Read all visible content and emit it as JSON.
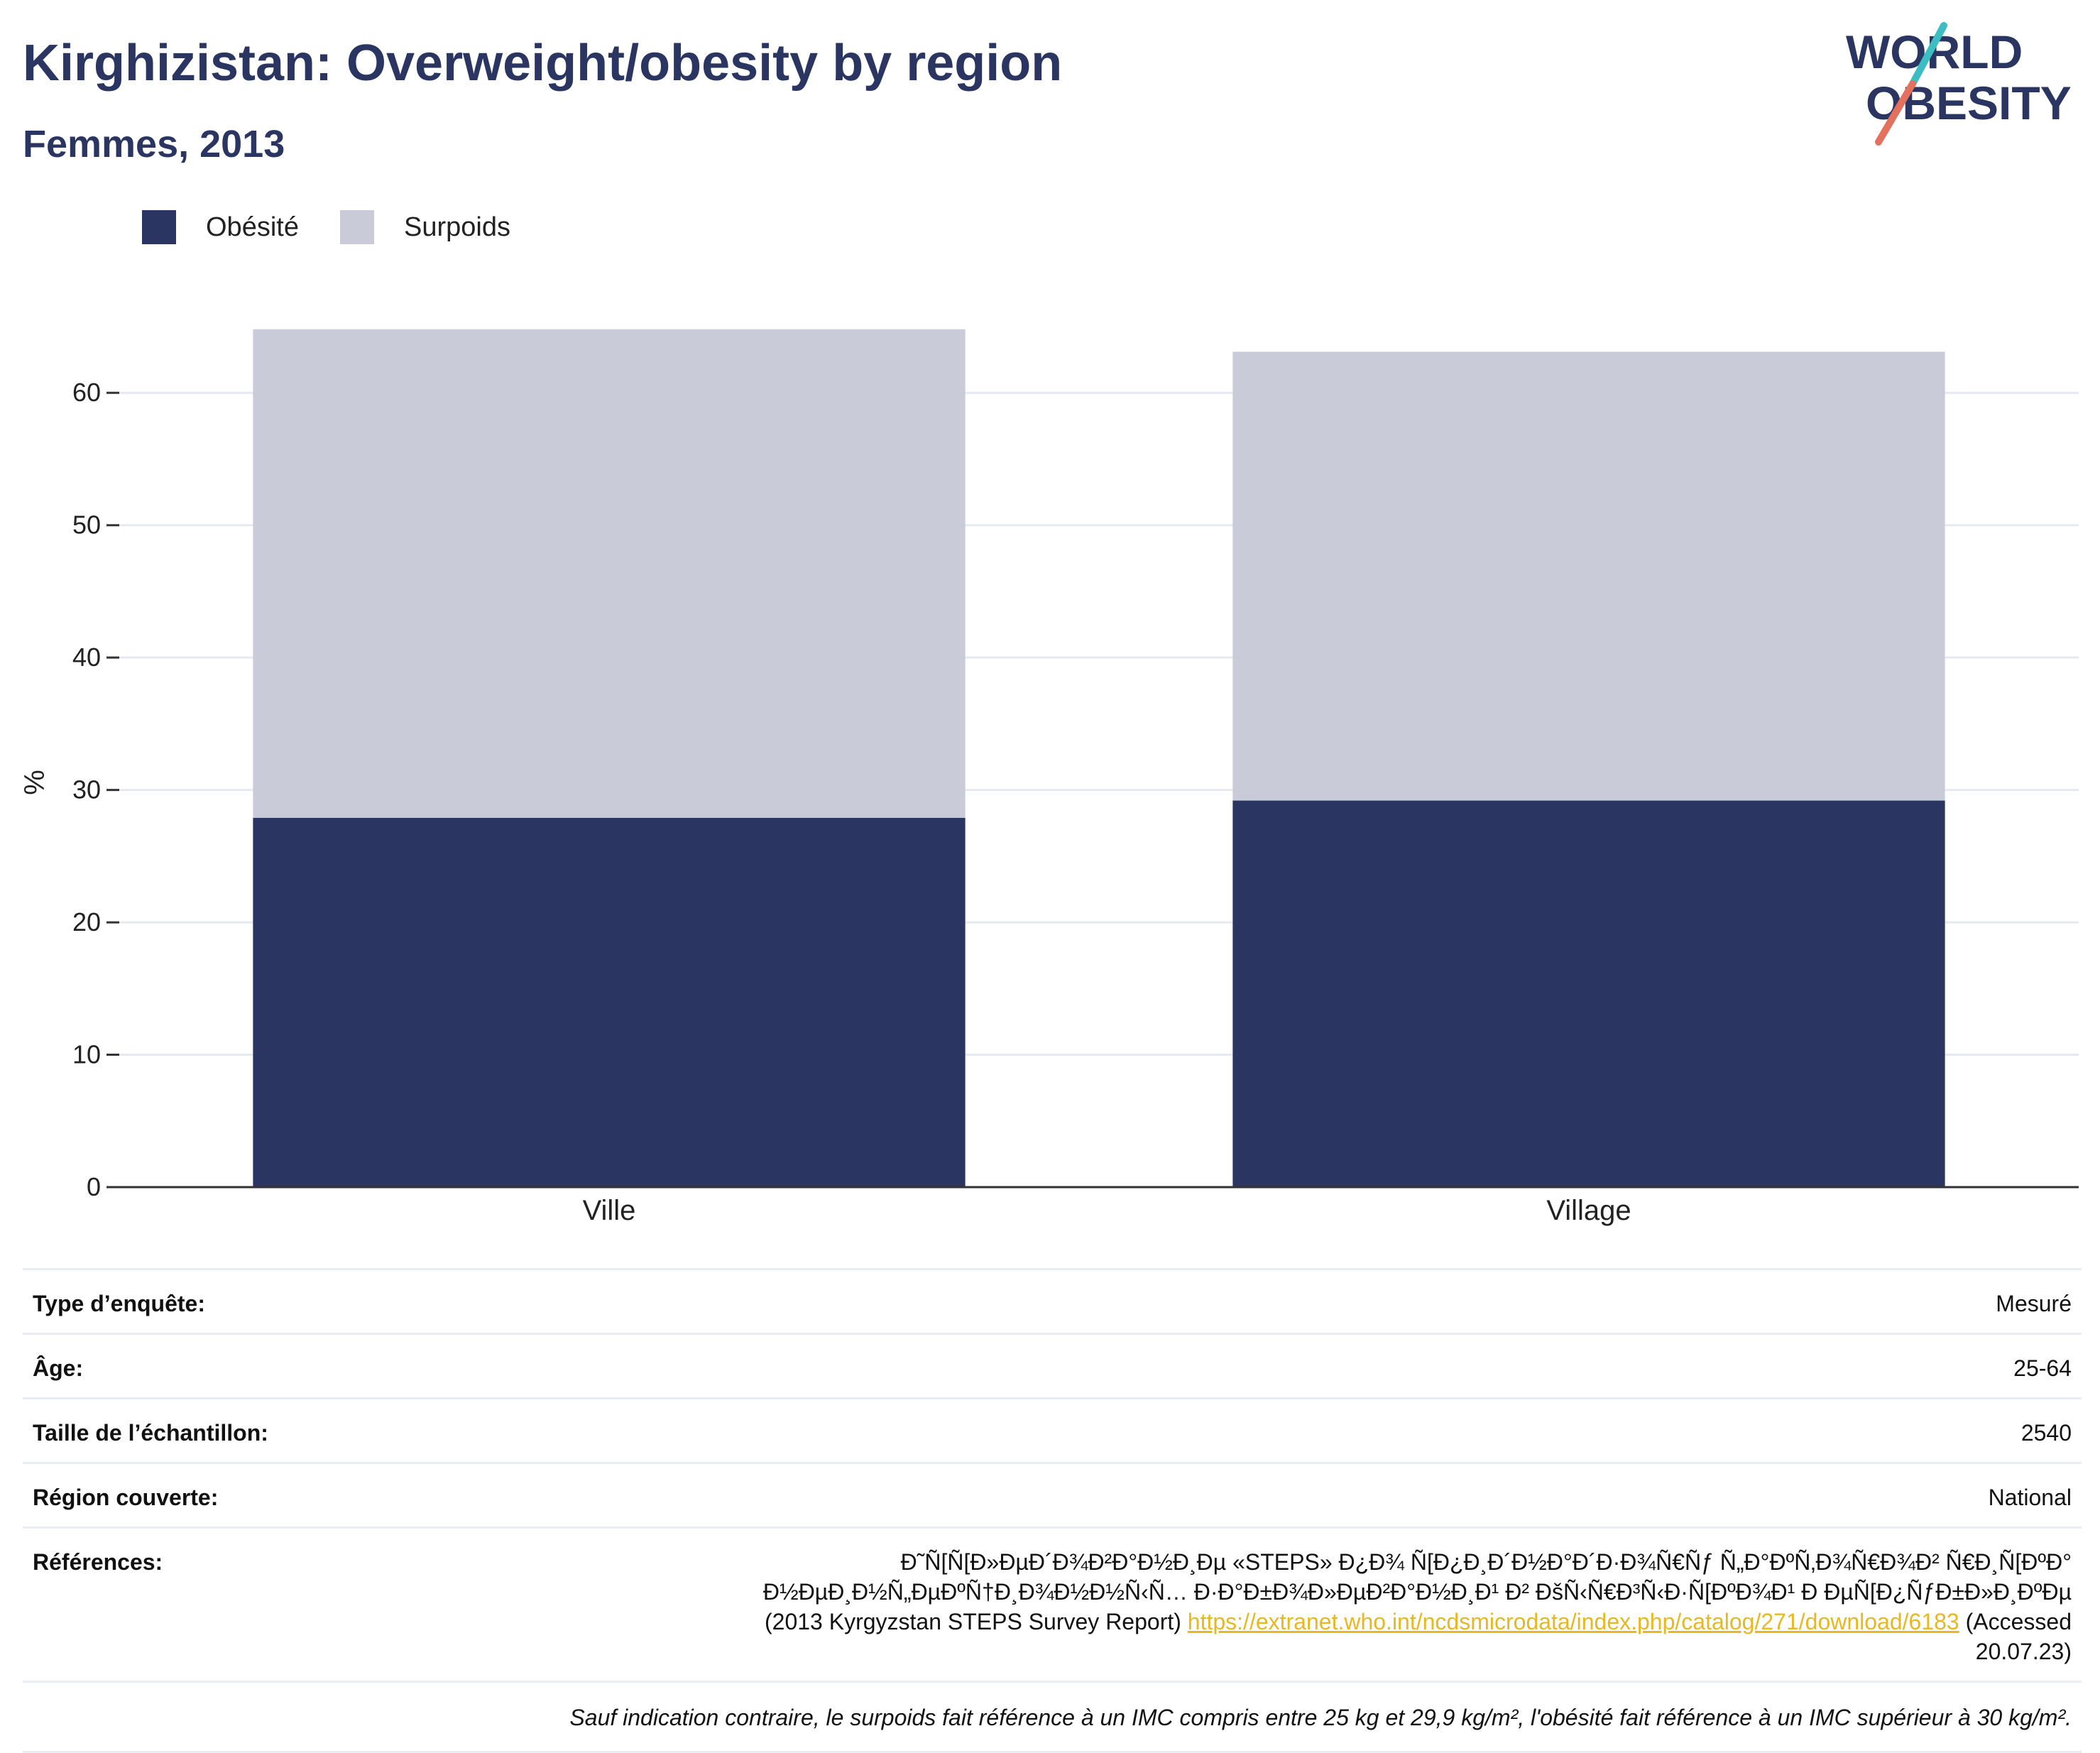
{
  "header": {
    "title": "Kirghizistan: Overweight/obesity by region",
    "subtitle": "Femmes, 2013",
    "logo_text_line1": "WORLD",
    "logo_text_line2": "OBESITY"
  },
  "legend": {
    "items": [
      {
        "label": "Obésité",
        "color": "#2a3661"
      },
      {
        "label": "Surpoids",
        "color": "#c9ccd8"
      }
    ]
  },
  "chart_data": {
    "type": "bar",
    "stacked": true,
    "categories": [
      "Ville",
      "Village"
    ],
    "series": [
      {
        "name": "Obésité",
        "values": [
          27.9,
          29.2
        ],
        "color": "#2a3661"
      },
      {
        "name": "Surpoids",
        "values": [
          36.9,
          33.9
        ],
        "color": "#c9ccd8"
      }
    ],
    "ylabel": "%",
    "ylim": [
      0,
      65
    ],
    "yticks": [
      0,
      10,
      20,
      30,
      40,
      50,
      60
    ],
    "grid": true,
    "legend_position": "top-left"
  },
  "info": {
    "survey_type": {
      "label": "Type d’enquête:",
      "value": "Mesuré"
    },
    "age": {
      "label": "Âge:",
      "value": "25-64"
    },
    "sample_size": {
      "label": "Taille de l’échantillon:",
      "value": "2540"
    },
    "region": {
      "label": "Région couverte:",
      "value": "National"
    },
    "references": {
      "label": "Références:",
      "text_before": "Ð˜Ñ[Ñ[Ð»ÐµÐ´Ð¾Ð²Ð°Ð½Ð¸Ðµ «STEPS» Ð¿Ð¾ Ñ[Ð¿Ð¸Ð´Ð½Ð°Ð´Ð·Ð¾Ñ€Ñƒ Ñ„Ð°ÐºÑ‚Ð¾Ñ€Ð¾Ð² Ñ€Ð¸Ñ[ÐºÐ° Ð½ÐµÐ¸Ð½Ñ„ÐµÐºÑ†Ð¸Ð¾Ð½Ð½Ñ‹Ñ… Ð·Ð°Ð±Ð¾Ð»ÐµÐ²Ð°Ð½Ð¸Ð¹ Ð² ÐšÑ‹Ñ€Ð³Ñ‹Ð·Ñ[ÐºÐ¾Ð¹ Ð ÐµÑ[Ð¿ÑƒÐ±Ð»Ð¸ÐºÐµ (2013 Kyrgyzstan STEPS Survey Report)",
      "link": "https://extranet.who.int/ncdsmicrodata/index.php/catalog/271/download/6183",
      "text_after": "(Accessed 20.07.23)"
    },
    "note": "Sauf indication contraire, le surpoids fait référence à un IMC compris entre 25 kg et 29,9 kg/m², l'obésité fait référence à un IMC supérieur à 30 kg/m²."
  }
}
